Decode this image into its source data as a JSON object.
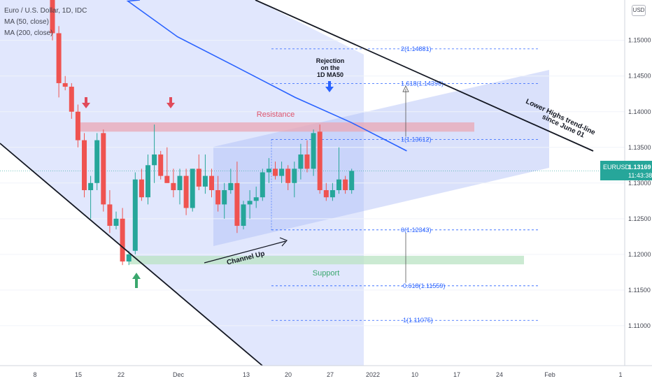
{
  "legend": {
    "title": "Euro / U.S. Dollar, 1D, IDC",
    "ma50": "MA (50, close)",
    "ma200": "MA (200, close)"
  },
  "currency_button": "USD",
  "price_badge": {
    "symbol": "EURUSD",
    "price": "1.13169",
    "countdown": "11:43:38"
  },
  "colors": {
    "up": "#26a69a",
    "down": "#ef5350",
    "ma50": "#2962ff",
    "channel": "#c9d4fb",
    "resistance": "#e9a7b4",
    "support": "#b9e3c3",
    "fib": "#2962ff"
  },
  "chart_data": {
    "type": "candlestick",
    "title": "Euro / U.S. Dollar, 1D, IDC",
    "y_axis": {
      "range": [
        1.1045,
        1.1535
      ],
      "ticks": [
        "1.15000",
        "1.14500",
        "1.14000",
        "1.13500",
        "1.13000",
        "1.12500",
        "1.12000",
        "1.11500",
        "1.11000"
      ]
    },
    "x_axis": {
      "ticks": [
        "8",
        "15",
        "22",
        "Dec",
        "13",
        "20",
        "27",
        "2022",
        "10",
        "17",
        "24",
        "Feb",
        "1"
      ]
    },
    "candles": [
      {
        "o": 1.156,
        "h": 1.158,
        "l": 1.15,
        "c": 1.151
      },
      {
        "o": 1.151,
        "h": 1.152,
        "l": 1.142,
        "c": 1.144
      },
      {
        "o": 1.144,
        "h": 1.145,
        "l": 1.143,
        "c": 1.1435
      },
      {
        "o": 1.1435,
        "h": 1.144,
        "l": 1.139,
        "c": 1.14
      },
      {
        "o": 1.14,
        "h": 1.141,
        "l": 1.135,
        "c": 1.136
      },
      {
        "o": 1.136,
        "h": 1.137,
        "l": 1.128,
        "c": 1.129
      },
      {
        "o": 1.129,
        "h": 1.131,
        "l": 1.125,
        "c": 1.13
      },
      {
        "o": 1.13,
        "h": 1.137,
        "l": 1.129,
        "c": 1.136
      },
      {
        "o": 1.137,
        "h": 1.1375,
        "l": 1.126,
        "c": 1.127
      },
      {
        "o": 1.127,
        "h": 1.129,
        "l": 1.123,
        "c": 1.124
      },
      {
        "o": 1.124,
        "h": 1.126,
        "l": 1.1235,
        "c": 1.125
      },
      {
        "o": 1.125,
        "h": 1.1265,
        "l": 1.1185,
        "c": 1.119
      },
      {
        "o": 1.119,
        "h": 1.1205,
        "l": 1.1185,
        "c": 1.12
      },
      {
        "o": 1.1205,
        "h": 1.1315,
        "l": 1.12,
        "c": 1.1305
      },
      {
        "o": 1.1305,
        "h": 1.132,
        "l": 1.1275,
        "c": 1.128
      },
      {
        "o": 1.128,
        "h": 1.134,
        "l": 1.127,
        "c": 1.1325
      },
      {
        "o": 1.1325,
        "h": 1.1382,
        "l": 1.13,
        "c": 1.134
      },
      {
        "o": 1.134,
        "h": 1.1345,
        "l": 1.1305,
        "c": 1.131
      },
      {
        "o": 1.131,
        "h": 1.135,
        "l": 1.13,
        "c": 1.13
      },
      {
        "o": 1.13,
        "h": 1.132,
        "l": 1.128,
        "c": 1.129
      },
      {
        "o": 1.129,
        "h": 1.132,
        "l": 1.127,
        "c": 1.131
      },
      {
        "o": 1.131,
        "h": 1.132,
        "l": 1.1255,
        "c": 1.1265
      },
      {
        "o": 1.1265,
        "h": 1.132,
        "l": 1.126,
        "c": 1.132
      },
      {
        "o": 1.132,
        "h": 1.134,
        "l": 1.129,
        "c": 1.1295
      },
      {
        "o": 1.1295,
        "h": 1.134,
        "l": 1.1285,
        "c": 1.131
      },
      {
        "o": 1.131,
        "h": 1.132,
        "l": 1.128,
        "c": 1.129
      },
      {
        "o": 1.129,
        "h": 1.131,
        "l": 1.126,
        "c": 1.127
      },
      {
        "o": 1.127,
        "h": 1.13,
        "l": 1.125,
        "c": 1.129
      },
      {
        "o": 1.129,
        "h": 1.132,
        "l": 1.1285,
        "c": 1.13
      },
      {
        "o": 1.13,
        "h": 1.133,
        "l": 1.123,
        "c": 1.124
      },
      {
        "o": 1.124,
        "h": 1.1275,
        "l": 1.1235,
        "c": 1.127
      },
      {
        "o": 1.127,
        "h": 1.129,
        "l": 1.125,
        "c": 1.1275
      },
      {
        "o": 1.1275,
        "h": 1.1295,
        "l": 1.1265,
        "c": 1.128
      },
      {
        "o": 1.128,
        "h": 1.132,
        "l": 1.1275,
        "c": 1.1315
      },
      {
        "o": 1.1315,
        "h": 1.1335,
        "l": 1.13,
        "c": 1.132
      },
      {
        "o": 1.132,
        "h": 1.133,
        "l": 1.1305,
        "c": 1.131
      },
      {
        "o": 1.131,
        "h": 1.133,
        "l": 1.13,
        "c": 1.132
      },
      {
        "o": 1.132,
        "h": 1.1325,
        "l": 1.129,
        "c": 1.13
      },
      {
        "o": 1.13,
        "h": 1.133,
        "l": 1.128,
        "c": 1.132
      },
      {
        "o": 1.132,
        "h": 1.1355,
        "l": 1.1305,
        "c": 1.134
      },
      {
        "o": 1.134,
        "h": 1.136,
        "l": 1.1315,
        "c": 1.132
      },
      {
        "o": 1.132,
        "h": 1.1375,
        "l": 1.131,
        "c": 1.137
      },
      {
        "o": 1.1372,
        "h": 1.1382,
        "l": 1.1285,
        "c": 1.129
      },
      {
        "o": 1.129,
        "h": 1.13,
        "l": 1.1275,
        "c": 1.128
      },
      {
        "o": 1.128,
        "h": 1.13,
        "l": 1.1275,
        "c": 1.129
      },
      {
        "o": 1.129,
        "h": 1.135,
        "l": 1.1285,
        "c": 1.1305
      },
      {
        "o": 1.1305,
        "h": 1.131,
        "l": 1.1285,
        "c": 1.129
      },
      {
        "o": 1.129,
        "h": 1.132,
        "l": 1.1285,
        "c": 1.1317
      }
    ],
    "ma50": [
      {
        "date": "2021-11-23",
        "y": 1.1555
      },
      {
        "date": "2021-12-01",
        "y": 1.1505
      },
      {
        "date": "2021-12-10",
        "y": 1.1465
      },
      {
        "date": "2021-12-20",
        "y": 1.142
      },
      {
        "date": "2021-12-29",
        "y": 1.1385
      },
      {
        "date": "2022-01-07",
        "y": 1.1345
      }
    ],
    "fib_levels": [
      {
        "label": "2(1.14881)",
        "y": 1.14881
      },
      {
        "label": "1.618(1.14396)",
        "y": 1.14396
      },
      {
        "label": "1(1.13612)",
        "y": 1.13612
      },
      {
        "label": "0(1.12343)",
        "y": 1.12343
      },
      {
        "label": "-0.618(1.11559)",
        "y": 1.11559
      },
      {
        "label": "-1(1.11075)",
        "y": 1.11075
      }
    ],
    "zones": {
      "resistance": {
        "label": "Resistance",
        "top": 1.1385,
        "bottom": 1.1372
      },
      "support": {
        "label": "Support",
        "top": 1.1198,
        "bottom": 1.1186
      }
    },
    "annotations": {
      "rejection": [
        "Rejection",
        "on the",
        "1D MA50"
      ],
      "channel_up": "Channel Up",
      "lower_highs": [
        "Lower Highs trend-line",
        "since June 01"
      ]
    }
  }
}
